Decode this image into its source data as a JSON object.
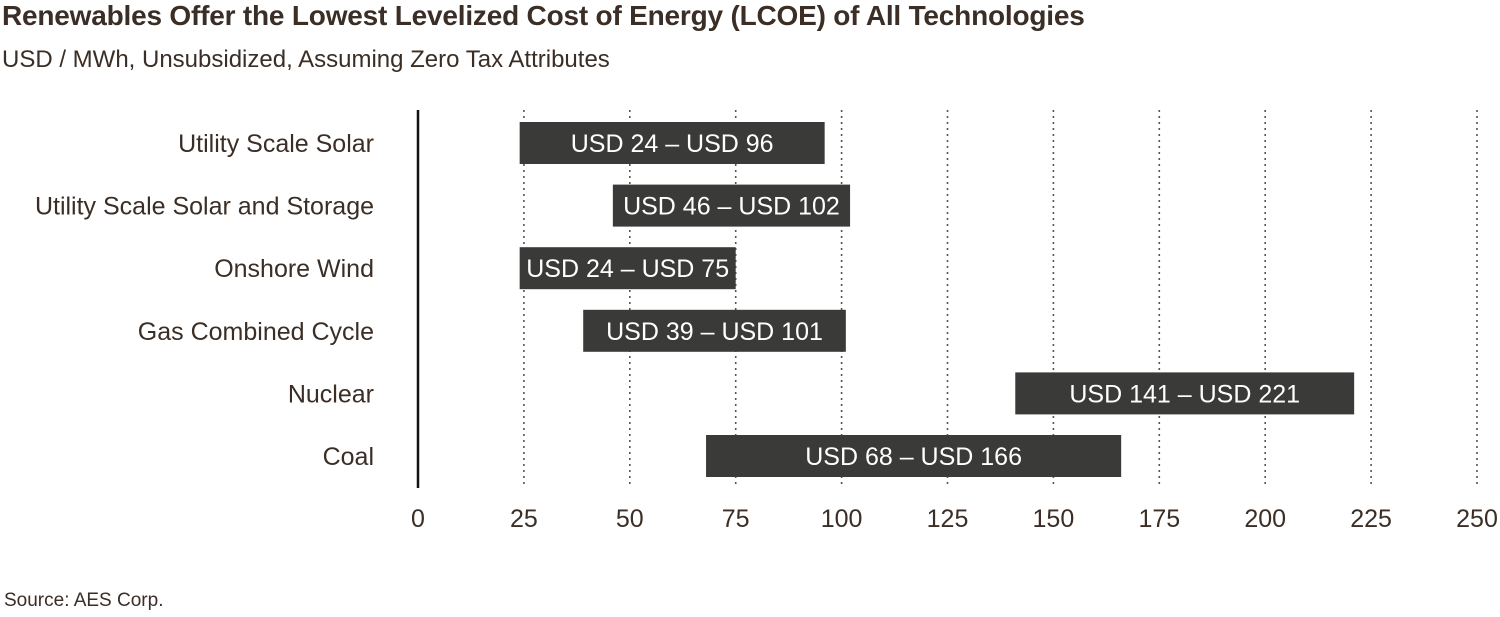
{
  "chart_data": {
    "type": "bar",
    "orientation": "horizontal",
    "title": "Renewables Offer the Lowest Levelized Cost of Energy (LCOE) of All Technologies",
    "subtitle": "USD / MWh, Unsubsidized, Assuming Zero Tax Attributes",
    "source": "Source: AES Corp.",
    "xlim": [
      0,
      250
    ],
    "xticks": [
      0,
      25,
      50,
      75,
      100,
      125,
      150,
      175,
      200,
      225,
      250
    ],
    "grid": "vertical dotted",
    "categories": [
      "Utility Scale Solar",
      "Utility Scale Solar and Storage",
      "Onshore Wind",
      "Gas Combined Cycle",
      "Nuclear",
      "Coal"
    ],
    "ranges": [
      {
        "low": 24,
        "high": 96,
        "label": "USD 24 – USD 96"
      },
      {
        "low": 46,
        "high": 102,
        "label": "USD 46 – USD 102"
      },
      {
        "low": 24,
        "high": 75,
        "label": "USD 24 – USD 75"
      },
      {
        "low": 39,
        "high": 101,
        "label": "USD 39 – USD 101"
      },
      {
        "low": 141,
        "high": 221,
        "label": "USD 141 – USD 221"
      },
      {
        "low": 68,
        "high": 166,
        "label": "USD 68 – USD 166"
      }
    ],
    "colors": {
      "bar": "#3a3a38",
      "bar_text": "#ffffff",
      "text": "#3a2e26",
      "grid": "#555555"
    }
  }
}
